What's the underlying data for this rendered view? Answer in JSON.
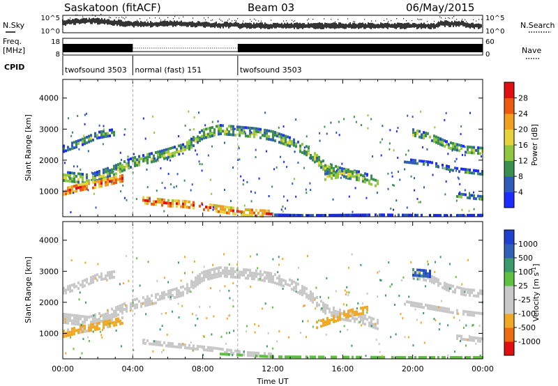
{
  "header": {
    "station": "Saskatoon (fitACF)",
    "beam": "Beam 03",
    "date": "06/May/2015"
  },
  "panels": {
    "nsky": {
      "label": "N.Sky",
      "ticks": [
        "10^5",
        "10^0"
      ]
    },
    "freq": {
      "label_top": "Freq.",
      "label_bottom": "[MHz]",
      "ticks": [
        "18",
        "8"
      ]
    },
    "nsearch": {
      "label": "N.Search",
      "ticks": [
        "10^5",
        "10^0"
      ]
    },
    "nave": {
      "label": "Nave",
      "ticks": [
        "60",
        "0"
      ]
    },
    "cpid": {
      "label": "CPID",
      "segments": [
        {
          "start_hour": 0,
          "end_hour": 4,
          "text": "twofsound 3503"
        },
        {
          "start_hour": 4,
          "end_hour": 10,
          "text": "normal (fast) 151"
        },
        {
          "start_hour": 10,
          "end_hour": 24,
          "text": "twofsound 3503"
        }
      ]
    }
  },
  "colors": {
    "power": [
      "#1c2cff",
      "#2e5cb8",
      "#3b8f4e",
      "#8fc840",
      "#e6d23a",
      "#f0a020",
      "#ec5a10",
      "#e01010"
    ],
    "velocity": [
      "#e01010",
      "#ec6a10",
      "#f0a828",
      "#c8c8c8",
      "#c8c8c8",
      "#60c040",
      "#3a9a6a",
      "#3060b8",
      "#2040d0"
    ]
  },
  "chart_data": [
    {
      "type": "heatmap",
      "name": "power",
      "ylabel": "Slant Range [km]",
      "xlabel": "",
      "ylim": [
        180,
        4600
      ],
      "xlim": [
        0,
        24
      ],
      "yticks": [
        1000,
        2000,
        3000,
        4000
      ],
      "colorbar_label": "Power [dB]",
      "colorbar_ticks": [
        "4",
        "8",
        "12",
        "16",
        "20",
        "24",
        "28"
      ],
      "colorbar_range": [
        0,
        32
      ],
      "bands": [
        {
          "points": [
            [
              0,
              1500
            ],
            [
              1.5,
              1400
            ],
            [
              3,
              1700
            ],
            [
              4,
              1950
            ],
            [
              5.5,
              2150
            ],
            [
              7,
              2400
            ],
            [
              8,
              2850
            ],
            [
              9,
              3000
            ],
            [
              10,
              2950
            ],
            [
              11,
              2900
            ],
            [
              12,
              2800
            ],
            [
              13,
              2600
            ],
            [
              14,
              2300
            ],
            [
              15,
              1800
            ],
            [
              16,
              1600
            ],
            [
              17,
              1500
            ],
            [
              18,
              1300
            ]
          ],
          "width": 330,
          "value": 14
        },
        {
          "points": [
            [
              0,
              2400
            ],
            [
              0.5,
              2500
            ],
            [
              1,
              2600
            ],
            [
              2,
              2850
            ],
            [
              3,
              2950
            ]
          ],
          "width": 180,
          "value": 12
        },
        {
          "points": [
            [
              0,
              1000
            ],
            [
              1,
              1150
            ],
            [
              2,
              1250
            ],
            [
              3.5,
              1450
            ]
          ],
          "width": 220,
          "value": 26
        },
        {
          "points": [
            [
              4.5,
              750
            ],
            [
              6,
              650
            ],
            [
              7,
              620
            ],
            [
              8.5,
              500
            ],
            [
              9.5,
              420
            ],
            [
              10.5,
              350
            ],
            [
              12,
              300
            ]
          ],
          "width": 200,
          "value": 26
        },
        {
          "points": [
            [
              12,
              250
            ],
            [
              14,
              230
            ],
            [
              16,
              240
            ],
            [
              18,
              250
            ],
            [
              20,
              240
            ],
            [
              22,
              230
            ],
            [
              24,
              240
            ]
          ],
          "width": 70,
          "value": 8
        },
        {
          "points": [
            [
              20,
              2900
            ],
            [
              21,
              2750
            ],
            [
              22,
              2500
            ],
            [
              23,
              2350
            ],
            [
              24,
              2300
            ]
          ],
          "width": 260,
          "value": 14
        },
        {
          "points": [
            [
              19.5,
              2000
            ],
            [
              21,
              1900
            ],
            [
              22.5,
              1700
            ],
            [
              24,
              1600
            ]
          ],
          "width": 160,
          "value": 10
        },
        {
          "points": [
            [
              22.5,
              900
            ],
            [
              23.2,
              850
            ],
            [
              24,
              800
            ]
          ],
          "width": 140,
          "value": 12
        },
        {
          "points": [
            [
              15,
              1500
            ],
            [
              16,
              1600
            ],
            [
              17,
              1550
            ]
          ],
          "width": 200,
          "value": 16
        }
      ]
    },
    {
      "type": "heatmap",
      "name": "velocity",
      "ylabel": "Slant Range [km]",
      "xlabel": "Time UT",
      "ylim": [
        180,
        4600
      ],
      "xlim": [
        0,
        24
      ],
      "yticks": [
        1000,
        2000,
        3000,
        4000
      ],
      "xticks": [
        "00:00",
        "04:00",
        "08:00",
        "12:00",
        "16:00",
        "20:00",
        "00:00"
      ],
      "xtick_hours": [
        0,
        4,
        8,
        12,
        16,
        20,
        24
      ],
      "colorbar_label": "Velocity [m s^-1]",
      "colorbar_ticks": [
        "-1000",
        "-500",
        "-100",
        "-25",
        "25",
        "100",
        "500",
        "1000"
      ],
      "bands": [
        {
          "points": [
            [
              0,
              1500
            ],
            [
              1.5,
              1400
            ],
            [
              3,
              1700
            ],
            [
              4,
              1950
            ],
            [
              5.5,
              2150
            ],
            [
              7,
              2400
            ],
            [
              8,
              2850
            ],
            [
              9,
              3000
            ],
            [
              10,
              2950
            ],
            [
              11,
              2900
            ],
            [
              12,
              2800
            ],
            [
              13,
              2600
            ],
            [
              14,
              2300
            ],
            [
              15,
              1800
            ],
            [
              16,
              1600
            ],
            [
              17,
              1500
            ],
            [
              18,
              1300
            ]
          ],
          "width": 330,
          "value": 0
        },
        {
          "points": [
            [
              0,
              2400
            ],
            [
              1,
              2600
            ],
            [
              2,
              2850
            ],
            [
              3,
              2950
            ]
          ],
          "width": 180,
          "value": 0
        },
        {
          "points": [
            [
              0,
              1000
            ],
            [
              1,
              1150
            ],
            [
              2,
              1250
            ],
            [
              3.5,
              1450
            ]
          ],
          "width": 220,
          "value": -200
        },
        {
          "points": [
            [
              4.5,
              750
            ],
            [
              6,
              650
            ],
            [
              8.5,
              500
            ],
            [
              10.5,
              350
            ],
            [
              12,
              300
            ]
          ],
          "width": 160,
          "value": 0
        },
        {
          "points": [
            [
              9,
              350
            ],
            [
              12,
              260
            ],
            [
              16,
              250
            ],
            [
              20,
              240
            ],
            [
              24,
              240
            ]
          ],
          "width": 60,
          "value": 60
        },
        {
          "points": [
            [
              20,
              2900
            ],
            [
              21,
              2800
            ],
            [
              22,
              2500
            ],
            [
              23,
              2350
            ],
            [
              24,
              2300
            ]
          ],
          "width": 220,
          "value": 0
        },
        {
          "points": [
            [
              20,
              3000
            ],
            [
              21,
              2950
            ]
          ],
          "width": 200,
          "value": 700
        },
        {
          "points": [
            [
              14.5,
              1300
            ],
            [
              15.5,
              1500
            ],
            [
              16.5,
              1700
            ],
            [
              17.5,
              1800
            ]
          ],
          "width": 200,
          "value": -300
        },
        {
          "points": [
            [
              19.5,
              2000
            ],
            [
              22.5,
              1700
            ],
            [
              24,
              1600
            ]
          ],
          "width": 160,
          "value": 0
        },
        {
          "points": [
            [
              22.5,
              900
            ],
            [
              24,
              800
            ]
          ],
          "width": 140,
          "value": 0
        }
      ]
    }
  ]
}
